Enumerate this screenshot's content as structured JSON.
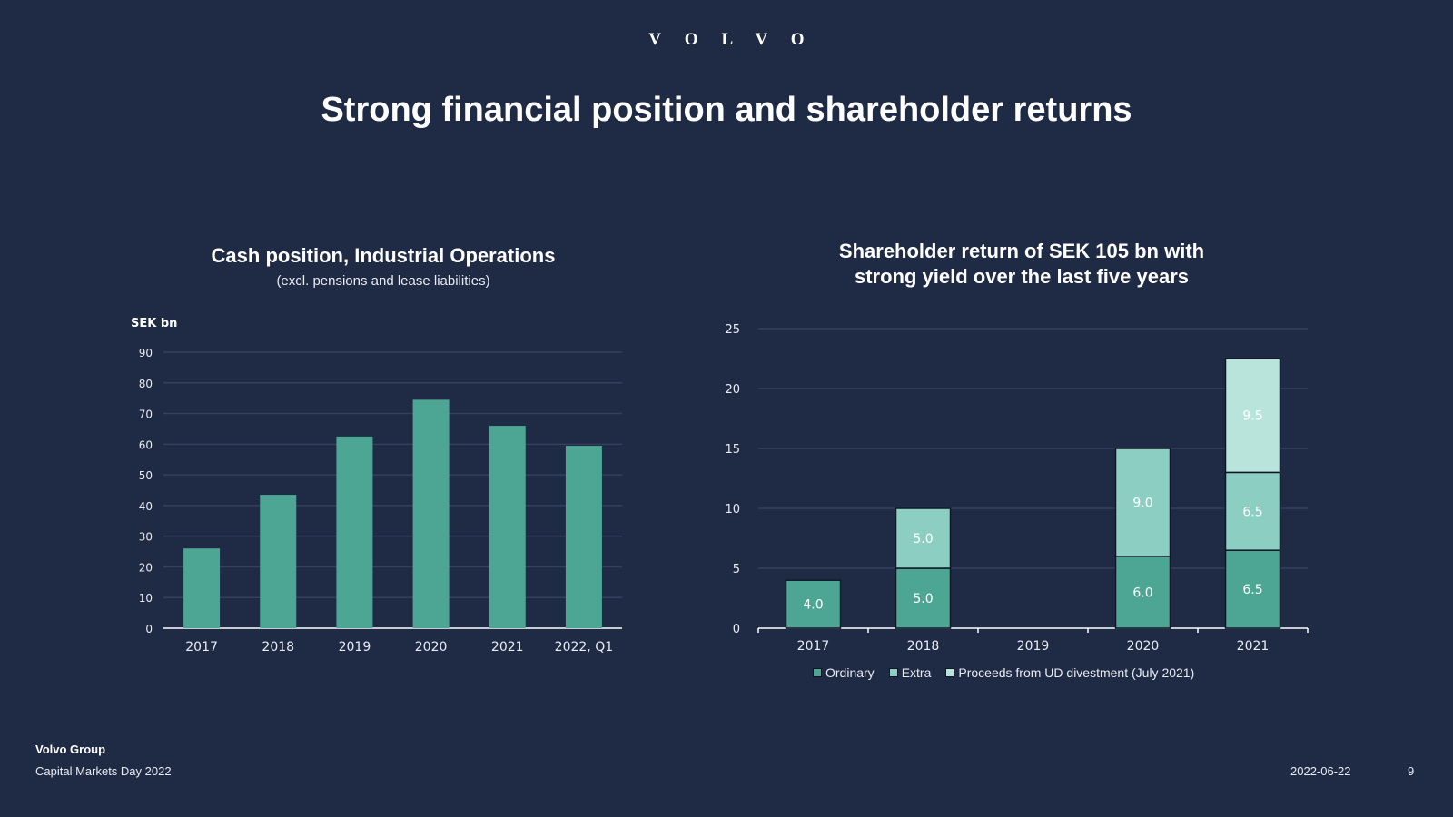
{
  "logo": "VOLVO",
  "title": "Strong financial position and shareholder returns",
  "footer": {
    "company": "Volvo Group",
    "event": "Capital Markets Day 2022",
    "date": "2022-06-22",
    "page": "9"
  },
  "colors": {
    "background": "#1f2a44",
    "ordinary": "#4da594",
    "extra": "#8ccfc2",
    "proceeds": "#b9e4dc",
    "gridline": "#34405d"
  },
  "left_panel": {
    "title": "Cash position, Industrial Operations",
    "subtitle": "(excl. pensions and lease liabilities)"
  },
  "right_panel": {
    "title_line1": "Shareholder return of SEK 105 bn with",
    "title_line2": "strong yield over the last five years"
  },
  "legend": {
    "ordinary": "Ordinary",
    "extra": "Extra",
    "proceeds": "Proceeds from UD divestment (July 2021)"
  },
  "chart_data": [
    {
      "type": "bar",
      "title": "Cash position, Industrial Operations",
      "subtitle": "(excl. pensions and lease liabilities)",
      "ylabel": "SEK bn",
      "categories": [
        "2017",
        "2018",
        "2019",
        "2020",
        "2021",
        "2022, Q1"
      ],
      "values": [
        26,
        43.5,
        62.5,
        74.5,
        66,
        59.5
      ],
      "ylim": [
        0,
        90
      ],
      "yticks": [
        0,
        10,
        20,
        30,
        40,
        50,
        60,
        70,
        80,
        90
      ],
      "grid": true
    },
    {
      "type": "bar",
      "stacked": true,
      "title": "Shareholder return of SEK 105 bn with strong yield over the last five years",
      "categories": [
        "2017",
        "2018",
        "2019",
        "2020",
        "2021"
      ],
      "series": [
        {
          "name": "Ordinary",
          "values": [
            4.0,
            5.0,
            0,
            6.0,
            6.5
          ]
        },
        {
          "name": "Extra",
          "values": [
            0,
            5.0,
            0,
            9.0,
            6.5
          ]
        },
        {
          "name": "Proceeds from UD divestment (July 2021)",
          "values": [
            0,
            0,
            0,
            0,
            9.5
          ]
        }
      ],
      "ylim": [
        0,
        25
      ],
      "yticks": [
        0,
        5,
        10,
        15,
        20,
        25
      ],
      "legend": "bottom",
      "grid": true
    }
  ]
}
